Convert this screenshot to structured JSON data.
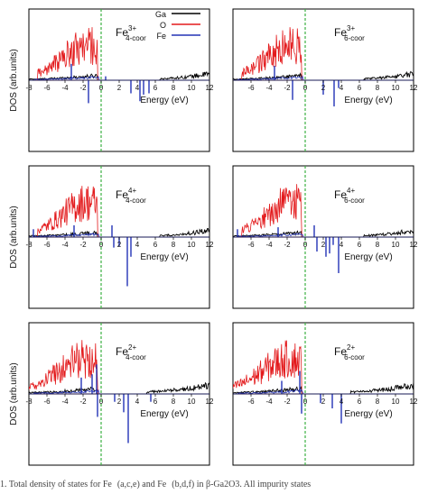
{
  "caption": "1. Total density of states for Fe   (a,c,e) and Fe   (b,d,f) in β-Ga2O3. All impurity states",
  "colors": {
    "Ga": "#000000",
    "O": "#e31a1c",
    "Fe": "#2333b6",
    "fermi": "#3cb043",
    "axis": "#000000"
  },
  "chart_data": [
    {
      "panel": "a",
      "type": "line",
      "label": "Fe",
      "label_sup": "3+",
      "label_sub": "4-coor",
      "xlabel": "Energy (eV)",
      "ylabel": "DOS (arb.units)",
      "xlim": [
        -8,
        12
      ],
      "xticks": [
        -8,
        -6,
        -4,
        -2,
        0,
        2,
        4,
        6,
        8,
        10,
        12
      ],
      "fermi_level": 0,
      "legend": [
        "Ga",
        "O",
        "Fe"
      ],
      "series": [
        {
          "name": "Ga",
          "bands": [
            [
              -8,
              -0.4,
              0.1
            ],
            [
              6.5,
              12,
              0.14
            ]
          ]
        },
        {
          "name": "O",
          "bands": [
            [
              -7,
              -0.4,
              1.0
            ]
          ]
        },
        {
          "name": "Fe",
          "spikes": [
            [
              -3.3,
              0.25
            ],
            [
              -1.4,
              -0.35
            ],
            [
              0.5,
              0.06
            ],
            [
              3.3,
              -0.2
            ],
            [
              4.3,
              -0.32
            ],
            [
              4.7,
              -0.22
            ],
            [
              5.3,
              -0.2
            ]
          ]
        }
      ]
    },
    {
      "panel": "b",
      "type": "line",
      "label": "Fe",
      "label_sup": "3+",
      "label_sub": "6-coor",
      "xlabel": "Energy (eV)",
      "ylabel": "",
      "xlim": [
        -8,
        12
      ],
      "xticks": [
        -8,
        -6,
        -4,
        -2,
        0,
        2,
        4,
        6,
        8,
        10,
        12
      ],
      "fermi_level": 0,
      "series": [
        {
          "name": "Ga",
          "bands": [
            [
              -8,
              -0.4,
              0.1
            ],
            [
              6.5,
              12,
              0.14
            ]
          ]
        },
        {
          "name": "O",
          "bands": [
            [
              -7,
              -0.4,
              1.0
            ]
          ]
        },
        {
          "name": "Fe",
          "spikes": [
            [
              -3.4,
              0.22
            ],
            [
              -1.4,
              -0.3
            ],
            [
              2.0,
              -0.22
            ],
            [
              3.2,
              -0.4
            ],
            [
              3.7,
              -0.12
            ]
          ]
        }
      ]
    },
    {
      "panel": "c",
      "type": "line",
      "label": "Fe",
      "label_sup": "4+",
      "label_sub": "4-coor",
      "xlabel": "Energy (eV)",
      "ylabel": "DOS (arb.units)",
      "xlim": [
        -8,
        12
      ],
      "xticks": [
        -8,
        -6,
        -4,
        -2,
        0,
        2,
        4,
        6,
        8,
        10,
        12
      ],
      "fermi_level": 0,
      "series": [
        {
          "name": "Ga",
          "bands": [
            [
              -8,
              -0.4,
              0.1
            ],
            [
              6.5,
              12,
              0.14
            ]
          ]
        },
        {
          "name": "O",
          "bands": [
            [
              -7,
              -0.4,
              1.0
            ]
          ]
        },
        {
          "name": "Fe",
          "spikes": [
            [
              -7.5,
              0.12
            ],
            [
              -3.0,
              0.18
            ],
            [
              1.2,
              0.18
            ],
            [
              1.4,
              -0.16
            ],
            [
              2.0,
              -0.14
            ],
            [
              2.9,
              -0.75
            ],
            [
              3.3,
              -0.3
            ]
          ]
        }
      ]
    },
    {
      "panel": "d",
      "type": "line",
      "label": "Fe",
      "label_sup": "4+",
      "label_sub": "6-coor",
      "xlabel": "Energy (eV)",
      "ylabel": "",
      "xlim": [
        -8,
        12
      ],
      "xticks": [
        -8,
        -6,
        -4,
        -2,
        0,
        2,
        4,
        6,
        8,
        10,
        12
      ],
      "fermi_level": 0,
      "series": [
        {
          "name": "Ga",
          "bands": [
            [
              -8,
              -0.4,
              0.1
            ],
            [
              6.5,
              12,
              0.14
            ]
          ]
        },
        {
          "name": "O",
          "bands": [
            [
              -7,
              -0.4,
              1.0
            ]
          ]
        },
        {
          "name": "Fe",
          "spikes": [
            [
              -7.5,
              0.12
            ],
            [
              -3.0,
              0.15
            ],
            [
              1.0,
              0.18
            ],
            [
              1.3,
              -0.22
            ],
            [
              2.3,
              -0.3
            ],
            [
              2.7,
              -0.25
            ],
            [
              3.1,
              -0.12
            ],
            [
              3.7,
              -0.55
            ]
          ]
        }
      ]
    },
    {
      "panel": "e",
      "type": "line",
      "label": "Fe",
      "label_sup": "2+",
      "label_sub": "4-coor",
      "xlabel": "Energy (eV)",
      "ylabel": "DOS (arb.units)",
      "xlim": [
        -8,
        12
      ],
      "xticks": [
        -8,
        -6,
        -4,
        -2,
        0,
        2,
        4,
        6,
        8,
        10,
        12
      ],
      "fermi_level": 0,
      "series": [
        {
          "name": "Ga",
          "bands": [
            [
              -8,
              -0.4,
              0.12
            ],
            [
              5.0,
              12,
              0.18
            ]
          ]
        },
        {
          "name": "O",
          "bands": [
            [
              -8,
              -0.4,
              1.0
            ]
          ]
        },
        {
          "name": "Fe",
          "spikes": [
            [
              -2.2,
              0.25
            ],
            [
              -1.0,
              0.3
            ],
            [
              -0.5,
              0.45
            ],
            [
              -0.4,
              -0.35
            ],
            [
              1.5,
              -0.12
            ],
            [
              2.5,
              -0.28
            ],
            [
              3.0,
              -0.75
            ],
            [
              5.5,
              -0.12
            ]
          ]
        }
      ]
    },
    {
      "panel": "f",
      "type": "line",
      "label": "Fe",
      "label_sup": "2+",
      "label_sub": "6-coor",
      "xlabel": "Energy (eV)",
      "ylabel": "",
      "xlim": [
        -8,
        12
      ],
      "xticks": [
        -8,
        -6,
        -4,
        -2,
        0,
        2,
        4,
        6,
        8,
        10,
        12
      ],
      "fermi_level": 0,
      "series": [
        {
          "name": "Ga",
          "bands": [
            [
              -8,
              -0.4,
              0.12
            ],
            [
              5.0,
              12,
              0.18
            ]
          ]
        },
        {
          "name": "O",
          "bands": [
            [
              -8,
              -0.4,
              1.0
            ]
          ]
        },
        {
          "name": "Fe",
          "spikes": [
            [
              -2.6,
              0.2
            ],
            [
              -0.6,
              0.35
            ],
            [
              -0.4,
              -0.3
            ],
            [
              1.7,
              -0.14
            ],
            [
              3.0,
              -0.22
            ],
            [
              4.0,
              -0.45
            ]
          ]
        }
      ]
    }
  ]
}
